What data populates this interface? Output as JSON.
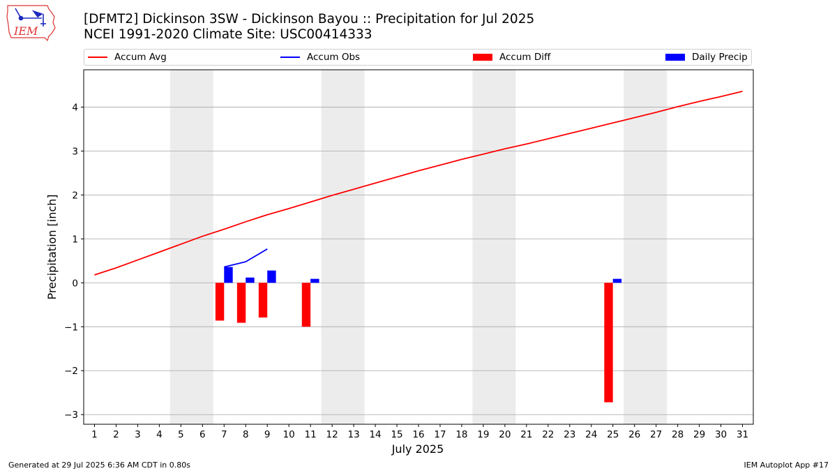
{
  "header": {
    "title_line1": "[DFMT2] Dickinson 3SW - Dickinson Bayou :: Precipitation for Jul 2025",
    "title_line2": "NCEI 1991-2020 Climate Site: USC00414333"
  },
  "logo": {
    "text": "IEM",
    "icon": "iem-iowa-logo"
  },
  "legend": {
    "accum_avg": "Accum Avg",
    "accum_obs": "Accum Obs",
    "accum_diff": "Accum Diff",
    "daily_precip": "Daily Precip"
  },
  "footer": {
    "left": "Generated at 29 Jul 2025 6:36 AM CDT in 0.80s",
    "right": "IEM Autoplot App #17"
  },
  "colors": {
    "accum_avg": "#ff0000",
    "accum_obs": "#0000ff",
    "accum_diff": "#ff0000",
    "daily_precip": "#0000ff",
    "weekend_shade": "#ececec",
    "grid": "#b0b0b0"
  },
  "chart_data": {
    "type": "bar",
    "xlabel": "July 2025",
    "ylabel": "Precipitation [inch]",
    "xlim": [
      0.5,
      31.5
    ],
    "ylim": [
      -3.22,
      4.85
    ],
    "yticks": [
      -3,
      -2,
      -1,
      0,
      1,
      2,
      3,
      4
    ],
    "grid": "y",
    "legend_position": "top",
    "days": [
      1,
      2,
      3,
      4,
      5,
      6,
      7,
      8,
      9,
      10,
      11,
      12,
      13,
      14,
      15,
      16,
      17,
      18,
      19,
      20,
      21,
      22,
      23,
      24,
      25,
      26,
      27,
      28,
      29,
      30,
      31
    ],
    "weekend_shading": [
      [
        4.5,
        6.5
      ],
      [
        11.5,
        13.5
      ],
      [
        18.5,
        20.5
      ],
      [
        25.5,
        27.5
      ]
    ],
    "series": [
      {
        "name": "Accum Avg",
        "type": "line",
        "x": [
          1,
          2,
          3,
          4,
          5,
          6,
          7,
          8,
          9,
          10,
          11,
          12,
          13,
          14,
          15,
          16,
          17,
          18,
          19,
          20,
          21,
          22,
          23,
          24,
          25,
          26,
          27,
          28,
          29,
          30,
          31
        ],
        "values": [
          0.18,
          0.34,
          0.52,
          0.7,
          0.88,
          1.06,
          1.22,
          1.39,
          1.55,
          1.69,
          1.84,
          1.99,
          2.13,
          2.27,
          2.41,
          2.55,
          2.68,
          2.81,
          2.93,
          3.05,
          3.16,
          3.28,
          3.4,
          3.52,
          3.64,
          3.76,
          3.88,
          4.01,
          4.13,
          4.24,
          4.36
        ]
      },
      {
        "name": "Accum Obs",
        "type": "line",
        "x": [
          7,
          8,
          9
        ],
        "values": [
          0.36,
          0.48,
          0.77
        ]
      },
      {
        "name": "Accum Diff",
        "type": "bar",
        "x": [
          7,
          8,
          9,
          11,
          25
        ],
        "values": [
          -0.86,
          -0.91,
          -0.79,
          -1.0,
          -2.72
        ]
      },
      {
        "name": "Daily Precip",
        "type": "bar",
        "x": [
          7,
          8,
          9,
          11,
          25
        ],
        "values": [
          0.36,
          0.12,
          0.28,
          0.09,
          0.09
        ]
      }
    ]
  }
}
